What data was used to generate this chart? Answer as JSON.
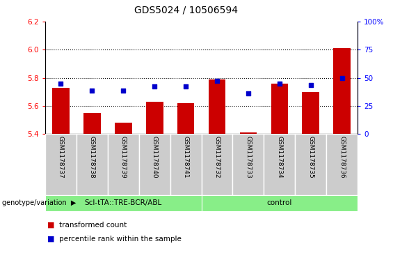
{
  "title": "GDS5024 / 10506594",
  "samples": [
    "GSM1178737",
    "GSM1178738",
    "GSM1178739",
    "GSM1178740",
    "GSM1178741",
    "GSM1178732",
    "GSM1178733",
    "GSM1178734",
    "GSM1178735",
    "GSM1178736"
  ],
  "bar_values": [
    5.73,
    5.55,
    5.48,
    5.63,
    5.62,
    5.79,
    5.41,
    5.76,
    5.7,
    6.01
  ],
  "scatter_values": [
    5.76,
    5.71,
    5.71,
    5.74,
    5.74,
    5.78,
    5.69,
    5.76,
    5.75,
    5.8
  ],
  "ylim_left": [
    5.4,
    6.2
  ],
  "ylim_right": [
    0,
    100
  ],
  "yticks_left": [
    5.4,
    5.6,
    5.8,
    6.0,
    6.2
  ],
  "yticks_right": [
    0,
    25,
    50,
    75,
    100
  ],
  "bar_color": "#cc0000",
  "scatter_color": "#0000cc",
  "bar_bottom": 5.4,
  "group1_label": "ScI-tTA::TRE-BCR/ABL",
  "group2_label": "control",
  "group_color": "#88ee88",
  "group_row_label": "genotype/variation",
  "legend_bar_label": "transformed count",
  "legend_scatter_label": "percentile rank within the sample",
  "title_fontsize": 10,
  "tick_fontsize": 7.5,
  "bar_width": 0.55,
  "x_tick_bg": "#cccccc",
  "gridline_vals": [
    5.6,
    5.8,
    6.0
  ]
}
